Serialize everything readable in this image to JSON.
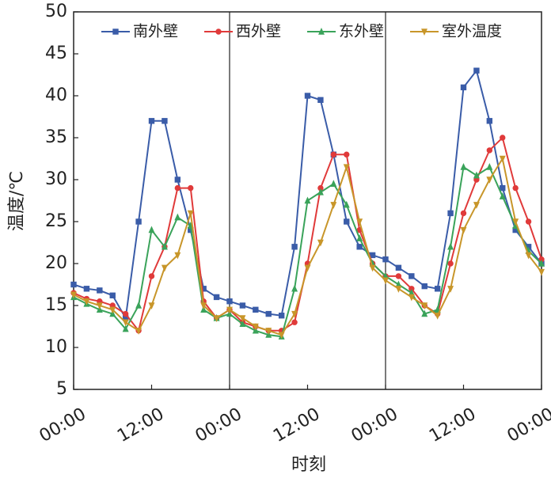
{
  "chart_data": {
    "type": "line",
    "x_label": "时刻",
    "y_label": "温度/℃",
    "x": [
      0,
      2,
      4,
      6,
      8,
      10,
      12,
      14,
      16,
      18,
      20,
      22,
      24,
      26,
      28,
      30,
      32,
      34,
      36,
      38,
      40,
      42,
      44,
      46,
      48,
      50,
      52,
      54,
      56,
      58,
      60,
      62,
      64,
      66,
      68,
      70,
      72
    ],
    "xlim": [
      0,
      72
    ],
    "xticks": [
      {
        "value": 0,
        "label": "00:00"
      },
      {
        "value": 12,
        "label": "12:00"
      },
      {
        "value": 24,
        "label": "00:00"
      },
      {
        "value": 36,
        "label": "12:00"
      },
      {
        "value": 48,
        "label": "00:00"
      },
      {
        "value": 60,
        "label": "12:00"
      },
      {
        "value": 72,
        "label": "00:00"
      }
    ],
    "ylim": [
      5,
      50
    ],
    "yticks": [
      5,
      10,
      15,
      20,
      25,
      30,
      35,
      40,
      45,
      50
    ],
    "series": [
      {
        "name": "南外壁",
        "color": "#3a5ca8",
        "marker": "square",
        "values": [
          17.5,
          17.0,
          16.8,
          16.2,
          13.5,
          25,
          37,
          37,
          30,
          24,
          17,
          16,
          15.5,
          15,
          14.5,
          14,
          13.8,
          22,
          40,
          39.5,
          33,
          25,
          22,
          21,
          20.5,
          19.5,
          18.5,
          17.3,
          17.0,
          26,
          41,
          43,
          37,
          29,
          24,
          22,
          20
        ]
      },
      {
        "name": "西外壁",
        "color": "#e03a3a",
        "marker": "circle",
        "values": [
          16.5,
          15.8,
          15.5,
          15,
          14,
          12,
          18.5,
          22,
          29,
          29,
          15.5,
          13.5,
          14.5,
          13,
          12.5,
          12,
          12,
          13,
          20,
          29,
          33,
          33,
          24,
          20,
          18.5,
          18.5,
          17,
          15,
          14,
          20,
          26,
          30,
          33.5,
          35,
          29,
          25,
          20.5
        ]
      },
      {
        "name": "东外壁",
        "color": "#3aa35a",
        "marker": "triangle-up",
        "values": [
          16,
          15.2,
          14.5,
          14,
          12.2,
          15,
          24,
          22,
          25.5,
          24.5,
          14.5,
          13.5,
          14,
          12.8,
          12,
          11.5,
          11.3,
          17,
          27.5,
          28.5,
          29.5,
          27,
          23,
          20,
          18.5,
          17.5,
          16.5,
          14,
          14.5,
          22,
          31.5,
          30.5,
          31.5,
          28,
          24.5,
          21.5,
          20
        ]
      },
      {
        "name": "室外温度",
        "color": "#c8962a",
        "marker": "triangle-down",
        "values": [
          16.3,
          15.5,
          15,
          14.5,
          13,
          12,
          15,
          19.5,
          21,
          26,
          15,
          13.5,
          14.5,
          13.5,
          12.5,
          12,
          11.5,
          14,
          19.5,
          22.5,
          27,
          31.5,
          25,
          19.5,
          18,
          17,
          16,
          15,
          13.8,
          17,
          24,
          27,
          30,
          32.5,
          25,
          21,
          19
        ]
      }
    ]
  }
}
